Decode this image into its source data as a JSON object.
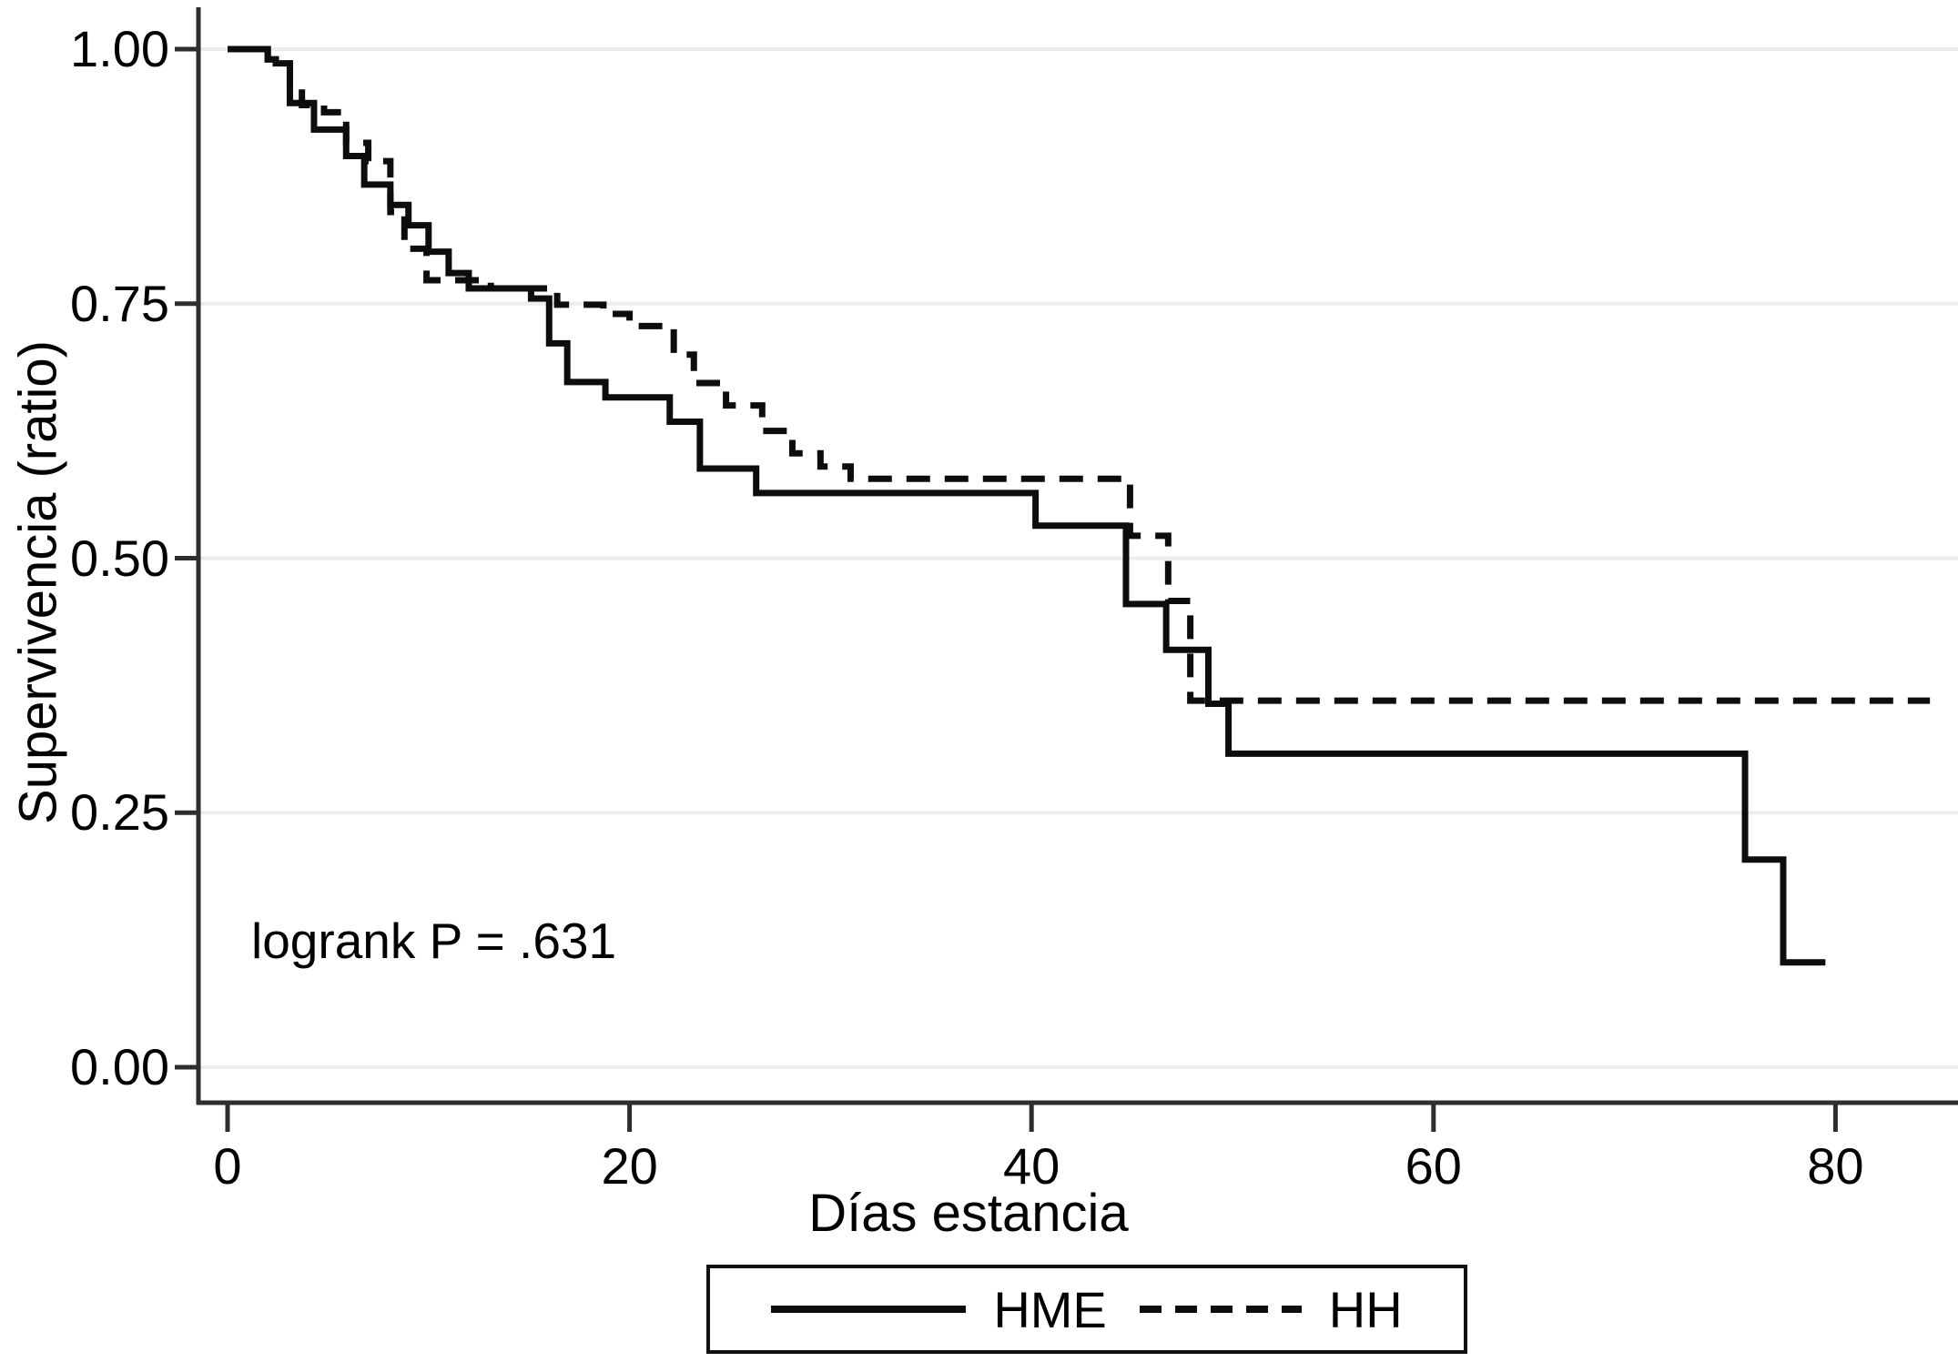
{
  "chart_data": {
    "type": "line",
    "subtype": "kaplan-meier-step",
    "title": "",
    "xlabel": "Días estancia",
    "ylabel": "Supervivencia (ratio)",
    "annotation": "logrank P = .631",
    "grid": "horizontal-only",
    "legend_position": "bottom-center-boxed",
    "x_axis": {
      "range": [
        0,
        86
      ],
      "ticks": [
        {
          "label": "0",
          "value": 0
        },
        {
          "label": "20",
          "value": 20
        },
        {
          "label": "40",
          "value": 40
        },
        {
          "label": "60",
          "value": 60
        },
        {
          "label": "80",
          "value": 80
        }
      ]
    },
    "y_axis": {
      "range": [
        0,
        1
      ],
      "ticks": [
        {
          "label": "1.00",
          "value": 1.0
        },
        {
          "label": "0.75",
          "value": 0.75
        },
        {
          "label": "0.50",
          "value": 0.5
        },
        {
          "label": "0.25",
          "value": 0.25
        },
        {
          "label": "0.00",
          "value": 0.0
        }
      ]
    },
    "legend": {
      "items": [
        {
          "label": "HME",
          "style": "solid"
        },
        {
          "label": "HH",
          "style": "dashed"
        }
      ]
    },
    "series": [
      {
        "name": "HME",
        "style": "solid",
        "end_day": 79.5,
        "steps": [
          [
            0,
            1.0
          ],
          [
            2.0,
            0.99
          ],
          [
            2.4,
            0.986
          ],
          [
            3.1,
            0.947
          ],
          [
            4.3,
            0.921
          ],
          [
            5.9,
            0.895
          ],
          [
            6.8,
            0.867
          ],
          [
            8.1,
            0.847
          ],
          [
            9.0,
            0.827
          ],
          [
            10.0,
            0.801
          ],
          [
            11.0,
            0.78
          ],
          [
            12.0,
            0.765
          ],
          [
            15.1,
            0.755
          ],
          [
            16.0,
            0.711
          ],
          [
            16.9,
            0.673
          ],
          [
            18.8,
            0.658
          ],
          [
            22.0,
            0.634
          ],
          [
            23.5,
            0.588
          ],
          [
            26.3,
            0.564
          ],
          [
            40.2,
            0.532
          ],
          [
            44.7,
            0.455
          ],
          [
            46.7,
            0.41
          ],
          [
            48.8,
            0.357
          ],
          [
            49.8,
            0.308
          ],
          [
            75.5,
            0.204
          ],
          [
            77.4,
            0.103
          ]
        ]
      },
      {
        "name": "HH",
        "style": "dashed",
        "end_day": 84.7,
        "steps": [
          [
            0,
            1.0
          ],
          [
            2.0,
            0.99
          ],
          [
            2.4,
            0.986
          ],
          [
            3.1,
            0.965
          ],
          [
            3.7,
            0.945
          ],
          [
            4.8,
            0.938
          ],
          [
            5.9,
            0.908
          ],
          [
            7.0,
            0.89
          ],
          [
            8.1,
            0.84
          ],
          [
            8.8,
            0.804
          ],
          [
            9.9,
            0.773
          ],
          [
            13.1,
            0.765
          ],
          [
            16.4,
            0.749
          ],
          [
            18.7,
            0.74
          ],
          [
            20.0,
            0.728
          ],
          [
            22.2,
            0.7
          ],
          [
            23.2,
            0.672
          ],
          [
            24.8,
            0.65
          ],
          [
            26.6,
            0.625
          ],
          [
            28.1,
            0.603
          ],
          [
            29.5,
            0.59
          ],
          [
            31.0,
            0.578
          ],
          [
            44.9,
            0.522
          ],
          [
            46.8,
            0.458
          ],
          [
            47.9,
            0.36
          ]
        ]
      }
    ],
    "colors": {
      "curve": "#0d0d0d",
      "grid": "#e7eeec",
      "axis": "#2e2e2e",
      "text": "#000000",
      "background": "#ffffff"
    }
  }
}
